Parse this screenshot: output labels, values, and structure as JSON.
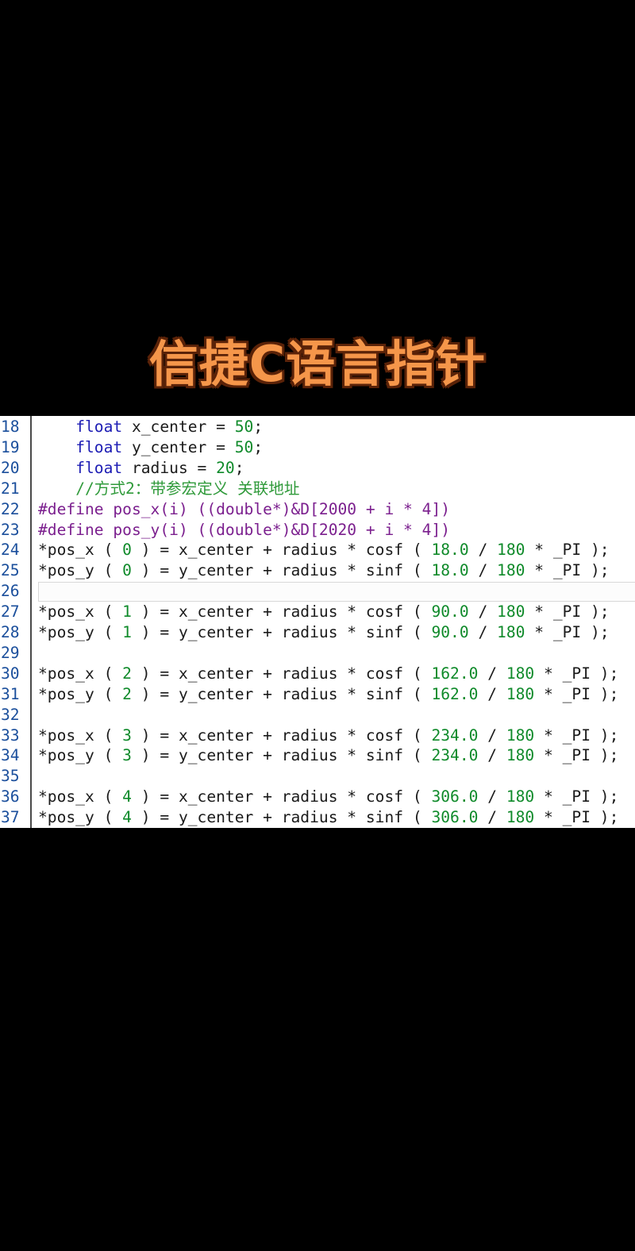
{
  "title": "信捷C语言指针",
  "editor": {
    "current_line": 26,
    "lines": [
      {
        "n": "18",
        "t": [
          [
            "    ",
            "plain"
          ],
          [
            "float",
            "kw"
          ],
          [
            " x_center = ",
            "plain"
          ],
          [
            "50",
            "num"
          ],
          [
            ";",
            "plain"
          ]
        ]
      },
      {
        "n": "19",
        "t": [
          [
            "    ",
            "plain"
          ],
          [
            "float",
            "kw"
          ],
          [
            " y_center = ",
            "plain"
          ],
          [
            "50",
            "num"
          ],
          [
            ";",
            "plain"
          ]
        ]
      },
      {
        "n": "20",
        "t": [
          [
            "    ",
            "plain"
          ],
          [
            "float",
            "kw"
          ],
          [
            " radius = ",
            "plain"
          ],
          [
            "20",
            "num"
          ],
          [
            ";",
            "plain"
          ]
        ]
      },
      {
        "n": "21",
        "t": [
          [
            "    ",
            "plain"
          ],
          [
            "//方式2：带参宏定义 关联地址",
            "cm"
          ]
        ]
      },
      {
        "n": "22",
        "t": [
          [
            "#define pos_x(i) ((double*)&D[2000 + i * 4])",
            "pp"
          ]
        ]
      },
      {
        "n": "23",
        "t": [
          [
            "#define pos_y(i) ((double*)&D[2020 + i * 4])",
            "pp"
          ]
        ]
      },
      {
        "n": "24",
        "t": [
          [
            "*pos_x ( ",
            "plain"
          ],
          [
            "0",
            "num"
          ],
          [
            " ) = x_center + radius * cosf ( ",
            "plain"
          ],
          [
            "18.0",
            "num"
          ],
          [
            " / ",
            "plain"
          ],
          [
            "180",
            "num"
          ],
          [
            " * _PI );",
            "plain"
          ]
        ]
      },
      {
        "n": "25",
        "t": [
          [
            "*pos_y ( ",
            "plain"
          ],
          [
            "0",
            "num"
          ],
          [
            " ) = y_center + radius * sinf ( ",
            "plain"
          ],
          [
            "18.0",
            "num"
          ],
          [
            " / ",
            "plain"
          ],
          [
            "180",
            "num"
          ],
          [
            " * _PI );",
            "plain"
          ]
        ]
      },
      {
        "n": "26",
        "t": []
      },
      {
        "n": "27",
        "t": [
          [
            "*pos_x ( ",
            "plain"
          ],
          [
            "1",
            "num"
          ],
          [
            " ) = x_center + radius * cosf ( ",
            "plain"
          ],
          [
            "90.0",
            "num"
          ],
          [
            " / ",
            "plain"
          ],
          [
            "180",
            "num"
          ],
          [
            " * _PI );",
            "plain"
          ]
        ]
      },
      {
        "n": "28",
        "t": [
          [
            "*pos_y ( ",
            "plain"
          ],
          [
            "1",
            "num"
          ],
          [
            " ) = y_center + radius * sinf ( ",
            "plain"
          ],
          [
            "90.0",
            "num"
          ],
          [
            " / ",
            "plain"
          ],
          [
            "180",
            "num"
          ],
          [
            " * _PI );",
            "plain"
          ]
        ]
      },
      {
        "n": "29",
        "t": []
      },
      {
        "n": "30",
        "t": [
          [
            "*pos_x ( ",
            "plain"
          ],
          [
            "2",
            "num"
          ],
          [
            " ) = x_center + radius * cosf ( ",
            "plain"
          ],
          [
            "162.0",
            "num"
          ],
          [
            " / ",
            "plain"
          ],
          [
            "180",
            "num"
          ],
          [
            " * _PI );",
            "plain"
          ]
        ]
      },
      {
        "n": "31",
        "t": [
          [
            "*pos_y ( ",
            "plain"
          ],
          [
            "2",
            "num"
          ],
          [
            " ) = y_center + radius * sinf ( ",
            "plain"
          ],
          [
            "162.0",
            "num"
          ],
          [
            " / ",
            "plain"
          ],
          [
            "180",
            "num"
          ],
          [
            " * _PI );",
            "plain"
          ]
        ]
      },
      {
        "n": "32",
        "t": []
      },
      {
        "n": "33",
        "t": [
          [
            "*pos_x ( ",
            "plain"
          ],
          [
            "3",
            "num"
          ],
          [
            " ) = x_center + radius * cosf ( ",
            "plain"
          ],
          [
            "234.0",
            "num"
          ],
          [
            " / ",
            "plain"
          ],
          [
            "180",
            "num"
          ],
          [
            " * _PI );",
            "plain"
          ]
        ]
      },
      {
        "n": "34",
        "t": [
          [
            "*pos_y ( ",
            "plain"
          ],
          [
            "3",
            "num"
          ],
          [
            " ) = y_center + radius * sinf ( ",
            "plain"
          ],
          [
            "234.0",
            "num"
          ],
          [
            " / ",
            "plain"
          ],
          [
            "180",
            "num"
          ],
          [
            " * _PI );",
            "plain"
          ]
        ]
      },
      {
        "n": "35",
        "t": []
      },
      {
        "n": "36",
        "t": [
          [
            "*pos_x ( ",
            "plain"
          ],
          [
            "4",
            "num"
          ],
          [
            " ) = x_center + radius * cosf ( ",
            "plain"
          ],
          [
            "306.0",
            "num"
          ],
          [
            " / ",
            "plain"
          ],
          [
            "180",
            "num"
          ],
          [
            " * _PI );",
            "plain"
          ]
        ]
      },
      {
        "n": "37",
        "t": [
          [
            "*pos_y ( ",
            "plain"
          ],
          [
            "4",
            "num"
          ],
          [
            " ) = y_center + radius * sinf ( ",
            "plain"
          ],
          [
            "306.0",
            "num"
          ],
          [
            " / ",
            "plain"
          ],
          [
            "180",
            "num"
          ],
          [
            " * _PI );",
            "plain"
          ]
        ]
      }
    ]
  }
}
